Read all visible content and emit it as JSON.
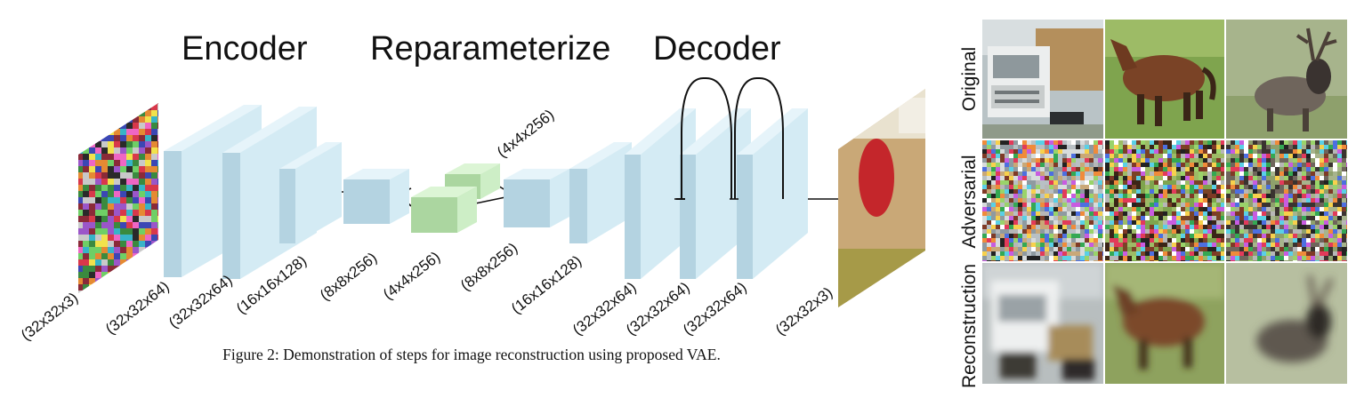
{
  "diagram": {
    "stage_titles": {
      "encoder": "Encoder",
      "reparameterize": "Reparameterize",
      "decoder": "Decoder"
    },
    "layer_labels": [
      "(32x32x3)",
      "(32x32x64)",
      "(32x32x64)",
      "(16x16x128)",
      "(8x8x256)",
      "(4x4x256)",
      "(4x4x256)",
      "(8x8x256)",
      "(16x16x128)",
      "(32x32x64)",
      "(32x32x64)",
      "(32x32x64)",
      "(32x32x3)"
    ],
    "colors": {
      "block_face": "#d4ebf4",
      "block_top": "#e6f4fa",
      "block_side": "#b4d3e1",
      "latent_face": "#cdeec6",
      "latent_top": "#dcf5d5",
      "latent_side": "#abd6a0",
      "line": "#111111"
    },
    "caption": "Figure 2: Demonstration of steps for image reconstruction using proposed VAE."
  },
  "grid": {
    "rows": [
      "Original",
      "Adversarial",
      "Reconstruction"
    ],
    "images": [
      [
        "truck-image",
        "horse-image",
        "deer-image"
      ],
      [
        "noisy-truck-image",
        "noisy-horse-image",
        "noisy-deer-image"
      ],
      [
        "reconstructed-truck-image",
        "reconstructed-horse-image",
        "reconstructed-deer-image"
      ]
    ]
  }
}
